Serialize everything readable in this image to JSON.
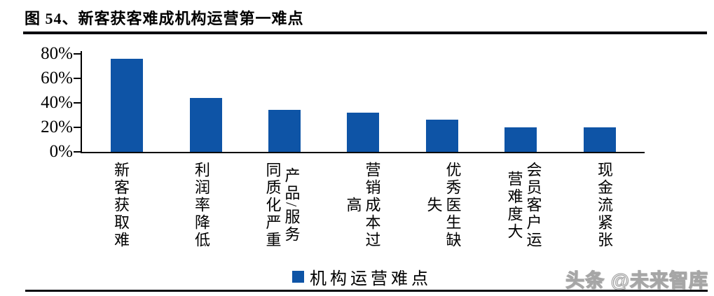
{
  "figure": {
    "title": "图 54、新客获客难成机构运营第一难点",
    "watermark": "头条 @未来智库"
  },
  "chart_data": {
    "type": "bar",
    "title": "图 54、新客获客难成机构运营第一难点",
    "categories": [
      "新客获取难",
      "利润率降低",
      "产品/服务同质化严重",
      "营销成本过高",
      "优秀医生缺失",
      "会员客户运营难度大",
      "现金流紧张"
    ],
    "values": [
      76,
      44,
      34,
      32,
      26,
      20,
      20
    ],
    "unit": "%",
    "ylim": [
      0,
      80
    ],
    "ytick_step": 20,
    "yticks": [
      "80%",
      "60%",
      "40%",
      "20%",
      "0%"
    ],
    "grid": false,
    "legend": {
      "label": "机构运营难点",
      "position": "bottom-center"
    },
    "colors": {
      "bar": "#0e54a6",
      "axis": "#000000",
      "rule": "#0a0a0f"
    }
  }
}
